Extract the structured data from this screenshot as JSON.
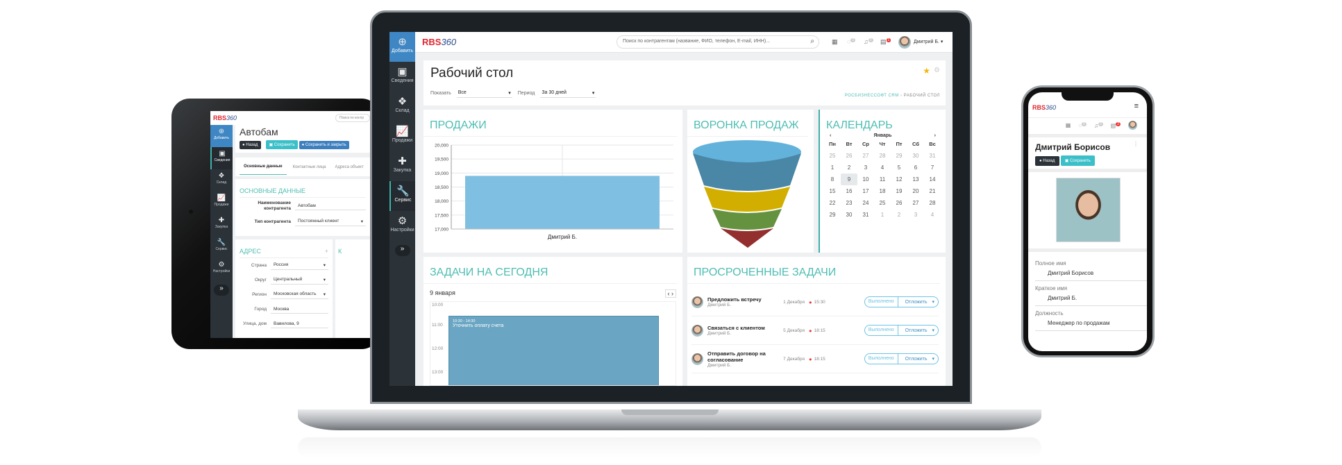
{
  "laptop": {
    "logo": {
      "text": "RBS",
      "suffix": "360"
    },
    "sidebar": [
      {
        "label": "Добавить",
        "icon": "plus-circle-icon"
      },
      {
        "label": "Сведения",
        "icon": "id-card-icon"
      },
      {
        "label": "Склад",
        "icon": "boxes-icon"
      },
      {
        "label": "Продажи",
        "icon": "chart-line-icon"
      },
      {
        "label": "Закупка",
        "icon": "plus-icon"
      },
      {
        "label": "Сервис",
        "icon": "wrench-icon"
      },
      {
        "label": "Настройки",
        "icon": "gear-icon"
      }
    ],
    "search_placeholder": "Поиск по контрагентам (название, ФИО, телефон, E-mail, ИНН)...",
    "badges": {
      "messages": "0",
      "notifications": "0",
      "tasks": "1"
    },
    "user": "Дмитрий Б.",
    "page_title": "Рабочий стол",
    "filters": {
      "show_label": "Показать",
      "show_value": "Все",
      "period_label": "Период",
      "period_value": "За 30 дней"
    },
    "breadcrumb": [
      "РОСБИЗНЕССОФТ CRM",
      "РАБОЧИЙ СТОЛ"
    ],
    "sales": {
      "title": "ПРОДАЖИ"
    },
    "funnel": {
      "title": "ВОРОНКА ПРОДАЖ",
      "colors": [
        "#5fb0d8",
        "#4a86a5",
        "#d9b400",
        "#6a9a48",
        "#9a2f2f"
      ]
    },
    "calendar": {
      "title": "КАЛЕНДАРЬ",
      "month": "Январь",
      "prev": "‹",
      "next": "›",
      "weekdays": [
        "Пн",
        "Вт",
        "Ср",
        "Чт",
        "Пт",
        "Сб",
        "Вс"
      ],
      "weeks": [
        [
          "25",
          "26",
          "27",
          "28",
          "29",
          "30",
          "31"
        ],
        [
          "1",
          "2",
          "3",
          "4",
          "5",
          "6",
          "7"
        ],
        [
          "8",
          "9",
          "10",
          "11",
          "12",
          "13",
          "14"
        ],
        [
          "15",
          "16",
          "17",
          "18",
          "19",
          "20",
          "21"
        ],
        [
          "22",
          "23",
          "24",
          "25",
          "26",
          "27",
          "28"
        ],
        [
          "29",
          "30",
          "31",
          "1",
          "2",
          "3",
          "4"
        ]
      ],
      "today": "9"
    },
    "today_tasks": {
      "title": "ЗАДАЧИ НА СЕГОДНЯ",
      "date": "9 января",
      "hours": [
        "10:00",
        "11:00",
        "12:00",
        "13:00"
      ],
      "event": {
        "time": "10:30 - 14:30",
        "title": "Уточнить оплату счета"
      }
    },
    "overdue": {
      "title": "ПРОСРОЧЕННЫЕ ЗАДАЧИ",
      "done_label": "Выполнено",
      "postpone_label": "Отложить",
      "items": [
        {
          "title": "Предложить встречу",
          "user": "Дмитрий Б.",
          "date": "1 Декабря",
          "time": "15:30"
        },
        {
          "title": "Связаться с клиентом",
          "user": "Дмитрий Б.",
          "date": "5 Декабря",
          "time": "18:15"
        },
        {
          "title": "Отправить договор на согласование",
          "user": "Дмитрий Б.",
          "date": "7 Декабря",
          "time": "18:15"
        }
      ]
    }
  },
  "chart_data": {
    "type": "bar",
    "categories": [
      "Дмитрий Б."
    ],
    "values": [
      18900
    ],
    "ylim": [
      17000,
      20000
    ],
    "yticks": [
      "17,000",
      "17,500",
      "18,000",
      "18,500",
      "19,000",
      "19,500",
      "20,000"
    ],
    "grid": true,
    "color": "#7fc0e2"
  },
  "tablet": {
    "search_placeholder": "Поиск по контр",
    "title": "Автобам",
    "buttons": {
      "back": "Назад",
      "save": "Сохранить",
      "save_close": "Сохранить и закрыть"
    },
    "tabs": [
      "Основные данные",
      "Контактные лица",
      "Адреса объект"
    ],
    "main_section": "ОСНОВНЫЕ ДАННЫЕ",
    "fields": [
      {
        "label": "Наименование контрагента",
        "value": "Автобам"
      },
      {
        "label": "Тип контрагента",
        "value": "Постоянный клиент"
      }
    ],
    "address_section": "АДРЕС",
    "side_section": "К",
    "address": [
      {
        "label": "Страна",
        "value": "Россия"
      },
      {
        "label": "Округ",
        "value": "Центральный"
      },
      {
        "label": "Регион",
        "value": "Московская область"
      },
      {
        "label": "Город",
        "value": "Москва"
      },
      {
        "label": "Улица, дом",
        "value": "Вавилова, 9"
      }
    ]
  },
  "phone": {
    "badges": {
      "messages": "0",
      "notifications": "0",
      "tasks": "2"
    },
    "name": "Дмитрий Борисов",
    "buttons": {
      "back": "Назад",
      "save": "Сохранить"
    },
    "fields": [
      {
        "label": "Полное имя",
        "value": "Дмитрий Борисов"
      },
      {
        "label": "Краткое имя",
        "value": "Дмитрий Б."
      },
      {
        "label": "Должность",
        "value": "Менеджер по продажам"
      }
    ]
  }
}
